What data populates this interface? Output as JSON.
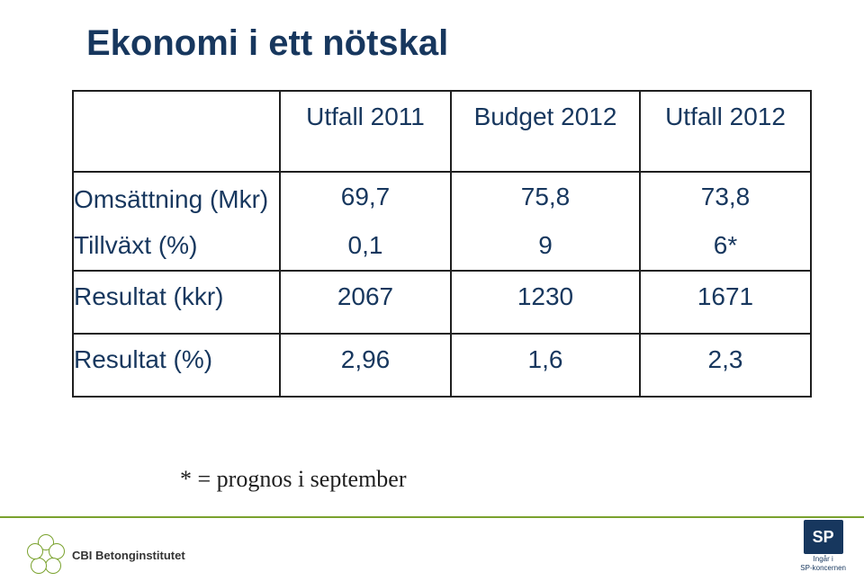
{
  "title": "Ekonomi i ett nötskal",
  "headers": {
    "c1": "Utfall 2011",
    "c2": "Budget 2012",
    "c3": "Utfall 2012"
  },
  "rows": {
    "r1": {
      "label": "Omsättning (Mkr)",
      "c1": "69,7",
      "c2": "75,8",
      "c3": "73,8"
    },
    "r2": {
      "label": "Tillväxt (%)",
      "c1": "0,1",
      "c2": "9",
      "c3": "6*"
    },
    "r3": {
      "label": "Resultat (kkr)",
      "c1": "2067",
      "c2": "1230",
      "c3": "1671"
    },
    "r4": {
      "label": "Resultat (%)",
      "c1": "2,96",
      "c2": "1,6",
      "c3": "2,3"
    }
  },
  "footnote": "* = prognos i september",
  "footer": {
    "cbi": "CBI Betonginstitutet",
    "sp": "SP",
    "sp_caption1": "Ingår i",
    "sp_caption2": "SP-koncernen"
  },
  "colors": {
    "heading": "#17375e",
    "accent": "#7aa22e"
  }
}
